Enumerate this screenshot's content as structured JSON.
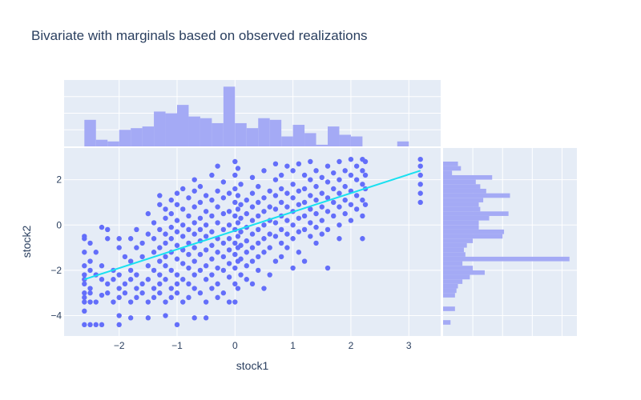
{
  "chart_data": {
    "type": "scatter",
    "title": "Bivariate with marginals based on observed realizations",
    "xlabel": "stock1",
    "ylabel": "stock2",
    "xlim": [
      -2.95,
      3.55
    ],
    "ylim": [
      -4.9,
      3.4
    ],
    "x_ticks": [
      "−2",
      "−1",
      "0",
      "1",
      "2",
      "3"
    ],
    "x_tick_values": [
      -2,
      -1,
      0,
      1,
      2,
      3
    ],
    "y_ticks": [
      "−4",
      "−2",
      "0",
      "2"
    ],
    "y_tick_values": [
      -4,
      -2,
      0,
      2
    ],
    "grid": true,
    "legend": "none",
    "colors": {
      "points": "#636efa",
      "marginal_bars": "#a4aaf5",
      "fit_line": "#19e0f0",
      "plot_bg": "#e5ecf6",
      "grid": "#ffffff",
      "text": "#2a3f5f"
    },
    "fit_line": {
      "x": [
        -2.6,
        3.2
      ],
      "y": [
        -2.4,
        2.4
      ]
    },
    "top_histogram": {
      "bin_starts": [
        -2.6,
        -2.4,
        -2.2,
        -2.0,
        -1.8,
        -1.6,
        -1.4,
        -1.2,
        -1.0,
        -0.8,
        -0.6,
        -0.4,
        -0.2,
        0.0,
        0.2,
        0.4,
        0.6,
        0.8,
        1.0,
        1.2,
        1.4,
        1.6,
        1.8,
        2.0,
        2.2,
        2.4,
        2.6,
        2.8,
        3.0
      ],
      "counts": [
        16,
        4,
        3,
        10,
        11,
        12,
        21,
        20,
        25,
        18,
        17,
        14,
        36,
        14,
        11,
        17,
        16,
        6,
        13,
        8,
        1,
        12,
        7,
        6,
        0,
        0,
        0,
        3,
        0
      ]
    },
    "right_histogram": {
      "bin_starts": [
        2.6,
        2.4,
        2.2,
        2.0,
        1.8,
        1.6,
        1.4,
        1.2,
        1.0,
        0.8,
        0.6,
        0.4,
        0.2,
        0.0,
        -0.2,
        -0.4,
        -0.6,
        -0.8,
        -1.0,
        -1.2,
        -1.4,
        -1.6,
        -1.8,
        -2.0,
        -2.2,
        -2.4,
        -2.6,
        -2.8,
        -3.0,
        -3.2,
        -3.4,
        -3.6,
        -3.8,
        -4.0,
        -4.2,
        -4.4
      ],
      "counts": [
        10,
        12,
        6,
        33,
        22,
        25,
        29,
        45,
        27,
        24,
        25,
        44,
        31,
        24,
        24,
        41,
        40,
        20,
        16,
        14,
        15,
        85,
        13,
        20,
        28,
        18,
        13,
        10,
        9,
        8,
        0,
        0,
        8,
        0,
        0,
        5
      ]
    },
    "points": [
      [
        -2.6,
        -2.4
      ],
      [
        -2.6,
        -2.6
      ],
      [
        -2.6,
        -3.0
      ],
      [
        -2.6,
        -3.4
      ],
      [
        -2.6,
        -3.8
      ],
      [
        -2.6,
        -4.4
      ],
      [
        -2.6,
        -0.5
      ],
      [
        -2.6,
        -0.6
      ],
      [
        -2.6,
        -1.2
      ],
      [
        -2.6,
        -1.8
      ],
      [
        -2.6,
        -2.2
      ],
      [
        -2.6,
        -3.2
      ],
      [
        -2.5,
        -0.8
      ],
      [
        -2.5,
        -2.0
      ],
      [
        -2.5,
        -2.8
      ],
      [
        -2.5,
        -3.0
      ],
      [
        -2.5,
        -3.4
      ],
      [
        -2.5,
        -4.4
      ],
      [
        -2.5,
        -1.6
      ],
      [
        -2.4,
        -2.2
      ],
      [
        -2.4,
        -1.2
      ],
      [
        -2.4,
        -3.4
      ],
      [
        -2.4,
        -4.4
      ],
      [
        -2.3,
        -0.1
      ],
      [
        -2.3,
        -1.8
      ],
      [
        -2.3,
        -2.4
      ],
      [
        -2.3,
        -3.1
      ],
      [
        -2.3,
        -4.4
      ],
      [
        -2.2,
        -0.2
      ],
      [
        -2.2,
        -0.6
      ],
      [
        -2.2,
        -2.6
      ],
      [
        -2.2,
        -3.0
      ],
      [
        -2.1,
        -2.0
      ],
      [
        -2.1,
        -2.4
      ],
      [
        -2.1,
        -3.4
      ],
      [
        -2.0,
        -1.0
      ],
      [
        -2.0,
        -2.2
      ],
      [
        -2.0,
        -2.8
      ],
      [
        -2.0,
        -3.2
      ],
      [
        -2.0,
        -4.0
      ],
      [
        -2.0,
        -4.4
      ],
      [
        -2.0,
        -0.6
      ],
      [
        -1.9,
        -1.4
      ],
      [
        -1.9,
        -2.6
      ],
      [
        -1.9,
        -3.0
      ],
      [
        -1.8,
        -0.6
      ],
      [
        -1.8,
        -1.6
      ],
      [
        -1.8,
        -2.0
      ],
      [
        -1.8,
        -2.4
      ],
      [
        -1.8,
        -3.4
      ],
      [
        -1.8,
        -4.1
      ],
      [
        -1.7,
        -0.2
      ],
      [
        -1.7,
        -1.0
      ],
      [
        -1.7,
        -2.2
      ],
      [
        -1.7,
        -2.8
      ],
      [
        -1.7,
        -3.2
      ],
      [
        -1.6,
        -0.8
      ],
      [
        -1.6,
        -1.4
      ],
      [
        -1.6,
        -2.6
      ],
      [
        -1.6,
        -3.0
      ],
      [
        -1.5,
        0.5
      ],
      [
        -1.5,
        -0.4
      ],
      [
        -1.5,
        -1.8
      ],
      [
        -1.5,
        -2.4
      ],
      [
        -1.5,
        -3.4
      ],
      [
        -1.5,
        -4.1
      ],
      [
        -1.4,
        0.1
      ],
      [
        -1.4,
        -0.6
      ],
      [
        -1.4,
        -1.2
      ],
      [
        -1.4,
        -2.0
      ],
      [
        -1.4,
        -2.8
      ],
      [
        -1.4,
        -3.2
      ],
      [
        -1.3,
        1.3
      ],
      [
        -1.3,
        0.9
      ],
      [
        -1.3,
        -0.2
      ],
      [
        -1.3,
        -1.0
      ],
      [
        -1.3,
        -1.6
      ],
      [
        -1.3,
        -2.2
      ],
      [
        -1.3,
        -2.6
      ],
      [
        -1.3,
        -3.0
      ],
      [
        -1.2,
        0.7
      ],
      [
        -1.2,
        0.3
      ],
      [
        -1.2,
        -0.4
      ],
      [
        -1.2,
        -0.8
      ],
      [
        -1.2,
        -1.4
      ],
      [
        -1.2,
        -1.8
      ],
      [
        -1.2,
        -2.4
      ],
      [
        -1.2,
        -3.4
      ],
      [
        -1.2,
        -4.0
      ],
      [
        -1.1,
        1.1
      ],
      [
        -1.1,
        0.5
      ],
      [
        -1.1,
        -0.1
      ],
      [
        -1.1,
        -0.6
      ],
      [
        -1.1,
        -1.2
      ],
      [
        -1.1,
        -2.0
      ],
      [
        -1.1,
        -2.8
      ],
      [
        -1.1,
        -3.2
      ],
      [
        -1.0,
        1.4
      ],
      [
        -1.0,
        0.9
      ],
      [
        -1.0,
        0.2
      ],
      [
        -1.0,
        -0.3
      ],
      [
        -1.0,
        -0.9
      ],
      [
        -1.0,
        -1.5
      ],
      [
        -1.0,
        -2.2
      ],
      [
        -1.0,
        -2.6
      ],
      [
        -1.0,
        -3.0
      ],
      [
        -1.0,
        -4.4
      ],
      [
        -0.9,
        1.6
      ],
      [
        -0.9,
        0.7
      ],
      [
        -0.9,
        0.0
      ],
      [
        -0.9,
        -0.5
      ],
      [
        -0.9,
        -1.1
      ],
      [
        -0.9,
        -1.7
      ],
      [
        -0.9,
        -2.4
      ],
      [
        -0.9,
        -3.4
      ],
      [
        -0.8,
        1.2
      ],
      [
        -0.8,
        0.4
      ],
      [
        -0.8,
        -0.2
      ],
      [
        -0.8,
        -0.8
      ],
      [
        -0.8,
        -1.3
      ],
      [
        -0.8,
        -1.9
      ],
      [
        -0.8,
        -2.6
      ],
      [
        -0.8,
        -3.2
      ],
      [
        -0.7,
        2.0
      ],
      [
        -0.7,
        1.5
      ],
      [
        -0.7,
        0.8
      ],
      [
        -0.7,
        0.1
      ],
      [
        -0.7,
        -0.4
      ],
      [
        -0.7,
        -1.0
      ],
      [
        -0.7,
        -1.6
      ],
      [
        -0.7,
        -2.2
      ],
      [
        -0.7,
        -2.8
      ],
      [
        -0.7,
        -4.1
      ],
      [
        -0.6,
        1.7
      ],
      [
        -0.6,
        1.0
      ],
      [
        -0.6,
        0.3
      ],
      [
        -0.6,
        -0.2
      ],
      [
        -0.6,
        -0.7
      ],
      [
        -0.6,
        -1.3
      ],
      [
        -0.6,
        -2.0
      ],
      [
        -0.6,
        -3.0
      ],
      [
        -0.5,
        1.3
      ],
      [
        -0.5,
        0.6
      ],
      [
        -0.5,
        0.0
      ],
      [
        -0.5,
        -0.5
      ],
      [
        -0.5,
        -1.1
      ],
      [
        -0.5,
        -1.8
      ],
      [
        -0.5,
        -2.4
      ],
      [
        -0.5,
        -3.4
      ],
      [
        -0.5,
        -4.1
      ],
      [
        -0.4,
        2.2
      ],
      [
        -0.4,
        1.1
      ],
      [
        -0.4,
        0.4
      ],
      [
        -0.4,
        -0.3
      ],
      [
        -0.4,
        -0.9
      ],
      [
        -0.4,
        -1.5
      ],
      [
        -0.4,
        -2.2
      ],
      [
        -0.4,
        -2.8
      ],
      [
        -0.3,
        2.6
      ],
      [
        -0.3,
        1.5
      ],
      [
        -0.3,
        0.8
      ],
      [
        -0.3,
        0.1
      ],
      [
        -0.3,
        -0.6
      ],
      [
        -0.3,
        -1.2
      ],
      [
        -0.3,
        -1.9
      ],
      [
        -0.3,
        -2.6
      ],
      [
        -0.3,
        -3.2
      ],
      [
        -0.2,
        1.9
      ],
      [
        -0.2,
        1.2
      ],
      [
        -0.2,
        0.5
      ],
      [
        -0.2,
        -0.2
      ],
      [
        -0.2,
        -0.8
      ],
      [
        -0.2,
        -1.4
      ],
      [
        -0.2,
        -2.0
      ],
      [
        -0.2,
        -3.0
      ],
      [
        -0.1,
        1.4
      ],
      [
        -0.1,
        0.6
      ],
      [
        -0.1,
        0.0
      ],
      [
        -0.1,
        -0.6
      ],
      [
        -0.1,
        -1.1
      ],
      [
        -0.1,
        -1.7
      ],
      [
        -0.1,
        -2.3
      ],
      [
        -0.1,
        -3.4
      ],
      [
        0.0,
        2.8
      ],
      [
        0.0,
        2.2
      ],
      [
        0.0,
        1.6
      ],
      [
        0.0,
        1.0
      ],
      [
        0.0,
        0.4
      ],
      [
        0.0,
        -0.2
      ],
      [
        0.0,
        -0.8
      ],
      [
        0.0,
        -1.3
      ],
      [
        0.0,
        -1.9
      ],
      [
        0.0,
        -2.6
      ],
      [
        0.0,
        -3.4
      ],
      [
        0.05,
        2.5
      ],
      [
        0.05,
        1.3
      ],
      [
        0.05,
        0.7
      ],
      [
        0.05,
        0.1
      ],
      [
        0.05,
        -0.5
      ],
      [
        0.05,
        -1.0
      ],
      [
        0.05,
        -1.6
      ],
      [
        0.05,
        -2.8
      ],
      [
        0.1,
        1.8
      ],
      [
        0.1,
        0.9
      ],
      [
        0.1,
        0.3
      ],
      [
        0.1,
        -0.3
      ],
      [
        0.1,
        -0.9
      ],
      [
        0.1,
        -1.5
      ],
      [
        0.1,
        -2.2
      ],
      [
        0.2,
        1.1
      ],
      [
        0.2,
        0.5
      ],
      [
        0.2,
        -0.1
      ],
      [
        0.2,
        -0.7
      ],
      [
        0.2,
        -1.2
      ],
      [
        0.2,
        -1.8
      ],
      [
        0.2,
        -2.4
      ],
      [
        0.3,
        2.1
      ],
      [
        0.3,
        1.4
      ],
      [
        0.3,
        0.8
      ],
      [
        0.3,
        0.2
      ],
      [
        0.3,
        -0.4
      ],
      [
        0.3,
        -1.0
      ],
      [
        0.3,
        -1.6
      ],
      [
        0.3,
        -2.6
      ],
      [
        0.4,
        1.7
      ],
      [
        0.4,
        1.0
      ],
      [
        0.4,
        0.4
      ],
      [
        0.4,
        -0.2
      ],
      [
        0.4,
        -0.8
      ],
      [
        0.4,
        -1.4
      ],
      [
        0.4,
        -2.0
      ],
      [
        0.5,
        2.4
      ],
      [
        0.5,
        1.2
      ],
      [
        0.5,
        0.6
      ],
      [
        0.5,
        0.0
      ],
      [
        0.5,
        -0.6
      ],
      [
        0.5,
        -1.2
      ],
      [
        0.5,
        -2.8
      ],
      [
        0.6,
        1.5
      ],
      [
        0.6,
        0.8
      ],
      [
        0.6,
        0.2
      ],
      [
        0.6,
        -0.4
      ],
      [
        0.6,
        -1.0
      ],
      [
        0.6,
        -2.2
      ],
      [
        0.7,
        2.7
      ],
      [
        0.7,
        2.0
      ],
      [
        0.7,
        1.3
      ],
      [
        0.7,
        0.7
      ],
      [
        0.7,
        0.1
      ],
      [
        0.7,
        -0.5
      ],
      [
        0.7,
        -1.6
      ],
      [
        0.8,
        2.2
      ],
      [
        0.8,
        1.6
      ],
      [
        0.8,
        1.0
      ],
      [
        0.8,
        0.4
      ],
      [
        0.8,
        -0.2
      ],
      [
        0.8,
        -0.8
      ],
      [
        0.8,
        -1.4
      ],
      [
        0.9,
        2.6
      ],
      [
        0.9,
        1.4
      ],
      [
        0.9,
        0.8
      ],
      [
        0.9,
        0.2
      ],
      [
        0.9,
        -0.4
      ],
      [
        0.9,
        -1.0
      ],
      [
        1.0,
        2.4
      ],
      [
        1.0,
        1.8
      ],
      [
        1.0,
        1.2
      ],
      [
        1.0,
        0.6
      ],
      [
        1.0,
        0.0
      ],
      [
        1.0,
        -0.6
      ],
      [
        1.0,
        -1.9
      ],
      [
        1.1,
        2.7
      ],
      [
        1.1,
        1.5
      ],
      [
        1.1,
        0.9
      ],
      [
        1.1,
        0.3
      ],
      [
        1.1,
        -0.3
      ],
      [
        1.1,
        -1.2
      ],
      [
        1.2,
        2.2
      ],
      [
        1.2,
        1.6
      ],
      [
        1.2,
        1.0
      ],
      [
        1.2,
        0.4
      ],
      [
        1.2,
        -0.2
      ],
      [
        1.2,
        -1.6
      ],
      [
        1.3,
        2.8
      ],
      [
        1.3,
        2.0
      ],
      [
        1.3,
        1.3
      ],
      [
        1.3,
        0.7
      ],
      [
        1.3,
        0.1
      ],
      [
        1.3,
        -0.5
      ],
      [
        1.4,
        2.4
      ],
      [
        1.4,
        1.7
      ],
      [
        1.4,
        1.1
      ],
      [
        1.4,
        0.5
      ],
      [
        1.4,
        -0.1
      ],
      [
        1.4,
        -0.8
      ],
      [
        1.5,
        2.1
      ],
      [
        1.5,
        1.4
      ],
      [
        1.5,
        0.8
      ],
      [
        1.5,
        0.2
      ],
      [
        1.5,
        -0.4
      ],
      [
        1.6,
        2.6
      ],
      [
        1.6,
        1.9
      ],
      [
        1.6,
        1.2
      ],
      [
        1.6,
        0.6
      ],
      [
        1.6,
        -0.2
      ],
      [
        1.6,
        -1.9
      ],
      [
        1.7,
        2.3
      ],
      [
        1.7,
        1.6
      ],
      [
        1.7,
        1.0
      ],
      [
        1.7,
        0.4
      ],
      [
        1.8,
        2.8
      ],
      [
        1.8,
        2.0
      ],
      [
        1.8,
        1.4
      ],
      [
        1.8,
        0.8
      ],
      [
        1.8,
        0.0
      ],
      [
        1.8,
        -0.6
      ],
      [
        1.9,
        2.4
      ],
      [
        1.9,
        1.7
      ],
      [
        1.9,
        1.1
      ],
      [
        1.9,
        0.5
      ],
      [
        2.0,
        2.9
      ],
      [
        2.0,
        2.2
      ],
      [
        2.0,
        1.5
      ],
      [
        2.0,
        0.9
      ],
      [
        2.0,
        0.2
      ],
      [
        2.1,
        2.6
      ],
      [
        2.1,
        2.0
      ],
      [
        2.1,
        1.3
      ],
      [
        2.1,
        0.7
      ],
      [
        2.2,
        2.9
      ],
      [
        2.2,
        2.4
      ],
      [
        2.2,
        1.8
      ],
      [
        2.2,
        1.1
      ],
      [
        2.2,
        0.4
      ],
      [
        2.2,
        -0.6
      ],
      [
        2.25,
        2.8
      ],
      [
        2.25,
        2.2
      ],
      [
        2.25,
        1.6
      ],
      [
        2.25,
        0.9
      ],
      [
        3.2,
        2.9
      ],
      [
        3.2,
        2.6
      ],
      [
        3.2,
        2.2
      ],
      [
        3.2,
        1.8
      ],
      [
        3.2,
        1.4
      ],
      [
        3.2,
        1.0
      ]
    ]
  }
}
